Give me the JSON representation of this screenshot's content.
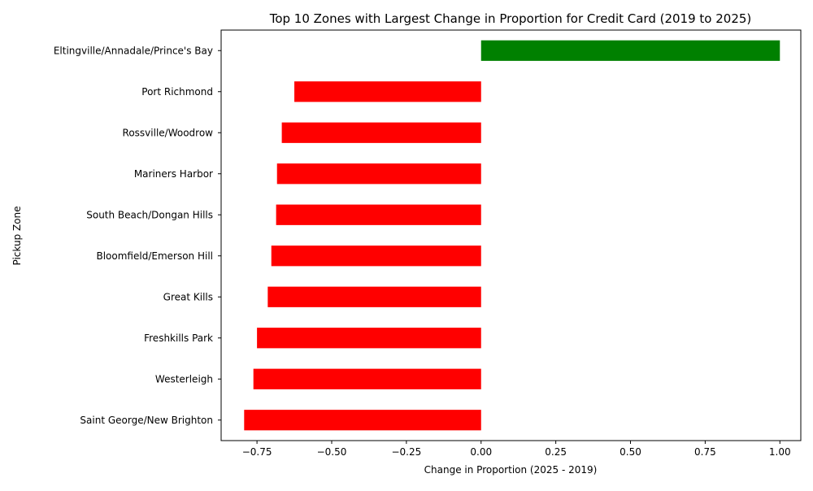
{
  "chart_data": {
    "type": "bar",
    "orientation": "horizontal",
    "title": "Top 10 Zones with Largest Change in Proportion for Credit Card (2019 to 2025)",
    "xlabel": "Change in Proportion (2025 - 2019)",
    "ylabel": "Pickup Zone",
    "xlim": [
      -0.87,
      1.07
    ],
    "xticks": [
      -0.75,
      -0.5,
      -0.25,
      0.0,
      0.25,
      0.5,
      0.75,
      1.0
    ],
    "xtick_labels": [
      "−0.75",
      "−0.50",
      "−0.25",
      "0.00",
      "0.25",
      "0.50",
      "0.75",
      "1.00"
    ],
    "grid": false,
    "legend": "none",
    "categories": [
      "Eltingville/Annadale/Prince's Bay",
      "Port Richmond",
      "Rossville/Woodrow",
      "Mariners Harbor",
      "South Beach/Dongan Hills",
      "Bloomfield/Emerson Hill",
      "Great Kills",
      "Freshkills Park",
      "Westerleigh",
      "Saint George/New Brighton"
    ],
    "values": [
      1.0,
      -0.625,
      -0.667,
      -0.683,
      -0.686,
      -0.702,
      -0.714,
      -0.75,
      -0.762,
      -0.793
    ],
    "positive_color": "#008000",
    "negative_color": "#ff0000"
  }
}
